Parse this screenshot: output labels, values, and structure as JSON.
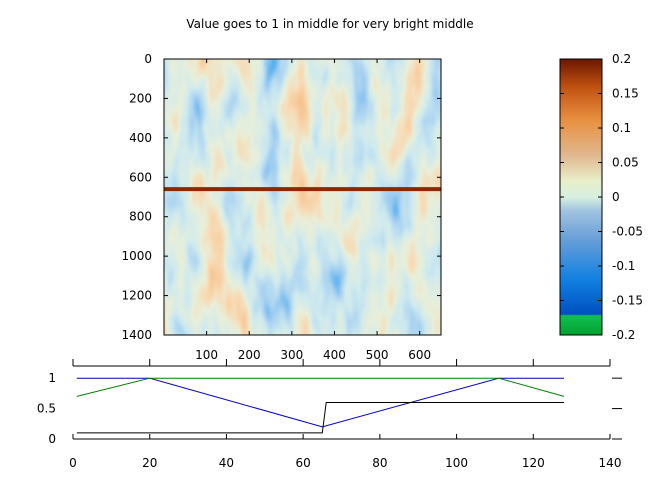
{
  "chart_data": [
    {
      "type": "heatmap",
      "title": "Value goes to 1 in middle for very bright middle",
      "x_ticks": [
        100,
        200,
        300,
        400,
        500,
        600
      ],
      "y_ticks": [
        0,
        200,
        400,
        600,
        800,
        1000,
        1200,
        1400
      ],
      "xlim": [
        0,
        650
      ],
      "ylim": [
        1400,
        0
      ],
      "bright_line_y": 660,
      "colormap": "green-blue-cyan-white-tan-orange-darkbrown",
      "colors": {
        "low": "#00a030",
        "mid_low": "#1060d0",
        "mid": "#f0f0f0",
        "mid_high": "#e08a40",
        "high": "#7a1e00"
      }
    },
    {
      "type": "colorbar",
      "ticks": [
        0.2,
        0.15,
        0.1,
        0.05,
        0,
        -0.05,
        -0.1,
        -0.15,
        -0.2
      ],
      "tick_labels": [
        "0.2",
        "0.15",
        "0.1",
        "0.05",
        "0",
        "-0.05",
        "-0.1",
        "-0.15",
        "-0.2"
      ],
      "range": [
        -0.2,
        0.2
      ]
    },
    {
      "type": "line",
      "xlim": [
        0,
        140
      ],
      "ylim": [
        0,
        1.2
      ],
      "x_ticks": [
        0,
        20,
        40,
        60,
        80,
        100,
        120,
        140
      ],
      "y_ticks": [
        0,
        0.5,
        1
      ],
      "y_tick_labels": [
        "0",
        "0.5",
        "1"
      ],
      "series": [
        {
          "color": "#0000c0",
          "x": [
            1,
            20,
            65,
            111,
            128
          ],
          "y": [
            1,
            1,
            0.2,
            1,
            1
          ]
        },
        {
          "color": "#008000",
          "x": [
            1,
            20,
            111,
            128
          ],
          "y": [
            0.7,
            1,
            1,
            0.7
          ]
        },
        {
          "color": "#000000",
          "x": [
            1,
            64,
            65,
            66,
            128
          ],
          "y": [
            0.1,
            0.1,
            0.1,
            0.6,
            0.6
          ]
        }
      ]
    }
  ]
}
